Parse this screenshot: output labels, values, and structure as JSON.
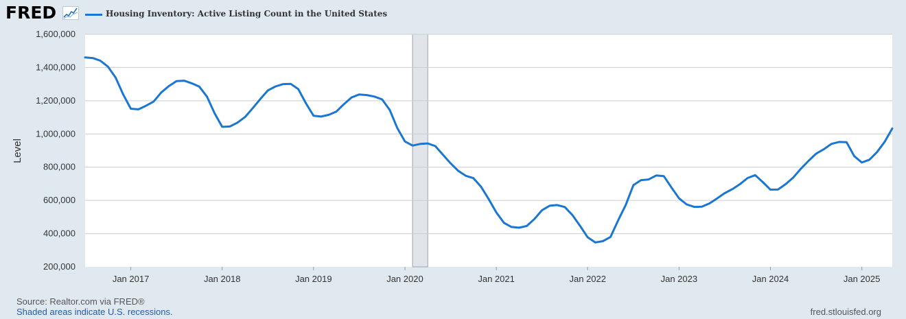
{
  "header": {
    "logo_text": "FRED",
    "logo_icon": "trend-chart-icon"
  },
  "chart_data": {
    "type": "line",
    "title": "Housing Inventory: Active Listing Count in the United States",
    "ylabel": "Level",
    "xlabel": "",
    "ylim": [
      200000,
      1600000
    ],
    "yticks": [
      200000,
      400000,
      600000,
      800000,
      1000000,
      1200000,
      1400000,
      1600000
    ],
    "ytick_labels": [
      "200,000",
      "400,000",
      "600,000",
      "800,000",
      "1,000,000",
      "1,200,000",
      "1,400,000",
      "1,600,000"
    ],
    "xlim": [
      "2016-07",
      "2025-05"
    ],
    "xtick_labels": [
      "Jan 2017",
      "Jan 2018",
      "Jan 2019",
      "Jan 2020",
      "Jan 2021",
      "Jan 2022",
      "Jan 2023",
      "Jan 2024",
      "Jan 2025"
    ],
    "grid": true,
    "line_color": "#1976d2",
    "recessions": [
      {
        "start": "2020-02",
        "end": "2020-04"
      }
    ],
    "series": [
      {
        "name": "Housing Inventory: Active Listing Count in the United States",
        "start": "2016-07",
        "frequency": "monthly",
        "values": [
          1461000,
          1457000,
          1441000,
          1405000,
          1340000,
          1238000,
          1152000,
          1148000,
          1170000,
          1195000,
          1250000,
          1288000,
          1318000,
          1321000,
          1305000,
          1285000,
          1225000,
          1125000,
          1043000,
          1045000,
          1068000,
          1102000,
          1155000,
          1210000,
          1262000,
          1286000,
          1300000,
          1302000,
          1270000,
          1185000,
          1110000,
          1105000,
          1115000,
          1135000,
          1180000,
          1220000,
          1238000,
          1234000,
          1225000,
          1208000,
          1145000,
          1035000,
          955000,
          930000,
          940000,
          943000,
          927000,
          875000,
          823000,
          778000,
          748000,
          734000,
          682000,
          608000,
          528000,
          465000,
          440000,
          436000,
          446000,
          488000,
          541000,
          568000,
          572000,
          560000,
          512000,
          447000,
          378000,
          347000,
          355000,
          380000,
          480000,
          573000,
          692000,
          722000,
          726000,
          750000,
          746000,
          678000,
          612000,
          576000,
          561000,
          562000,
          582000,
          612000,
          644000,
          668000,
          698000,
          735000,
          752000,
          710000,
          665000,
          666000,
          698000,
          738000,
          791000,
          838000,
          882000,
          908000,
          940000,
          952000,
          951000,
          867000,
          828000,
          845000,
          891000,
          953000,
          1033000
        ]
      }
    ]
  },
  "footer": {
    "source": "Source: Realtor.com via FRED®",
    "recession_note": "Shaded areas indicate U.S. recessions.",
    "site": "fred.stlouisfed.org"
  }
}
